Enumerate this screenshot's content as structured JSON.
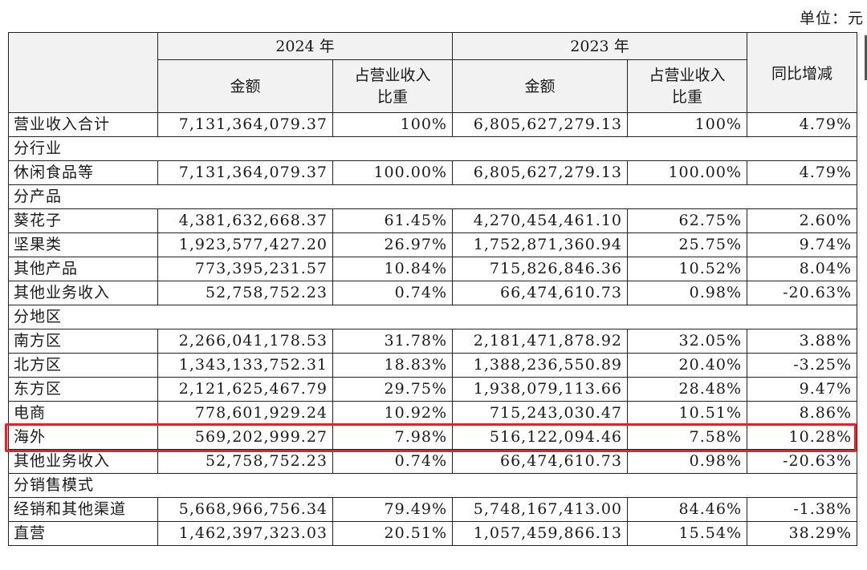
{
  "unit_label": "单位：元",
  "header": {
    "year_2024": "2024 年",
    "year_2023": "2023 年",
    "amount": "金额",
    "share_line1": "占营业收入",
    "share_line2": "比重",
    "yoy": "同比增减"
  },
  "rows": [
    {
      "type": "data",
      "label": "营业收入合计",
      "amt2024": "7,131,364,079.37",
      "pct2024": "100%",
      "amt2023": "6,805,627,279.13",
      "pct2023": "100%",
      "yoy": "4.79%"
    },
    {
      "type": "section",
      "label": "分行业"
    },
    {
      "type": "data",
      "label": "休闲食品等",
      "amt2024": "7,131,364,079.37",
      "pct2024": "100.00%",
      "amt2023": "6,805,627,279.13",
      "pct2023": "100.00%",
      "yoy": "4.79%"
    },
    {
      "type": "section",
      "label": "分产品"
    },
    {
      "type": "data",
      "label": "葵花子",
      "amt2024": "4,381,632,668.37",
      "pct2024": "61.45%",
      "amt2023": "4,270,454,461.10",
      "pct2023": "62.75%",
      "yoy": "2.60%"
    },
    {
      "type": "data",
      "label": "坚果类",
      "amt2024": "1,923,577,427.20",
      "pct2024": "26.97%",
      "amt2023": "1,752,871,360.94",
      "pct2023": "25.75%",
      "yoy": "9.74%"
    },
    {
      "type": "data",
      "label": "其他产品",
      "amt2024": "773,395,231.57",
      "pct2024": "10.84%",
      "amt2023": "715,826,846.36",
      "pct2023": "10.52%",
      "yoy": "8.04%"
    },
    {
      "type": "data",
      "label": "其他业务收入",
      "amt2024": "52,758,752.23",
      "pct2024": "0.74%",
      "amt2023": "66,474,610.73",
      "pct2023": "0.98%",
      "yoy": "-20.63%"
    },
    {
      "type": "section",
      "label": "分地区"
    },
    {
      "type": "data",
      "label": "南方区",
      "amt2024": "2,266,041,178.53",
      "pct2024": "31.78%",
      "amt2023": "2,181,471,878.92",
      "pct2023": "32.05%",
      "yoy": "3.88%"
    },
    {
      "type": "data",
      "label": "北方区",
      "amt2024": "1,343,133,752.31",
      "pct2024": "18.83%",
      "amt2023": "1,388,236,550.89",
      "pct2023": "20.40%",
      "yoy": "-3.25%"
    },
    {
      "type": "data",
      "label": "东方区",
      "amt2024": "2,121,625,467.79",
      "pct2024": "29.75%",
      "amt2023": "1,938,079,113.66",
      "pct2023": "28.48%",
      "yoy": "9.47%"
    },
    {
      "type": "data",
      "label": "电商",
      "amt2024": "778,601,929.24",
      "pct2024": "10.92%",
      "amt2023": "715,243,030.47",
      "pct2023": "10.51%",
      "yoy": "8.86%"
    },
    {
      "type": "data",
      "label": "海外",
      "amt2024": "569,202,999.27",
      "pct2024": "7.98%",
      "amt2023": "516,122,094.46",
      "pct2023": "7.58%",
      "yoy": "10.28%",
      "highlighted": true
    },
    {
      "type": "data",
      "label": "其他业务收入",
      "amt2024": "52,758,752.23",
      "pct2024": "0.74%",
      "amt2023": "66,474,610.73",
      "pct2023": "0.98%",
      "yoy": "-20.63%"
    },
    {
      "type": "section",
      "label": "分销售模式"
    },
    {
      "type": "data",
      "label": "经销和其他渠道",
      "amt2024": "5,668,966,756.34",
      "pct2024": "79.49%",
      "amt2023": "5,748,167,413.00",
      "pct2023": "84.46%",
      "yoy": "-1.38%"
    },
    {
      "type": "data",
      "label": "直营",
      "amt2024": "1,462,397,323.03",
      "pct2024": "20.51%",
      "amt2023": "1,057,459,866.13",
      "pct2023": "15.54%",
      "yoy": "38.29%"
    }
  ],
  "colors": {
    "highlight_border": "#e0232c",
    "header_bg": "#f2f2f2",
    "grid_line": "#222222"
  }
}
